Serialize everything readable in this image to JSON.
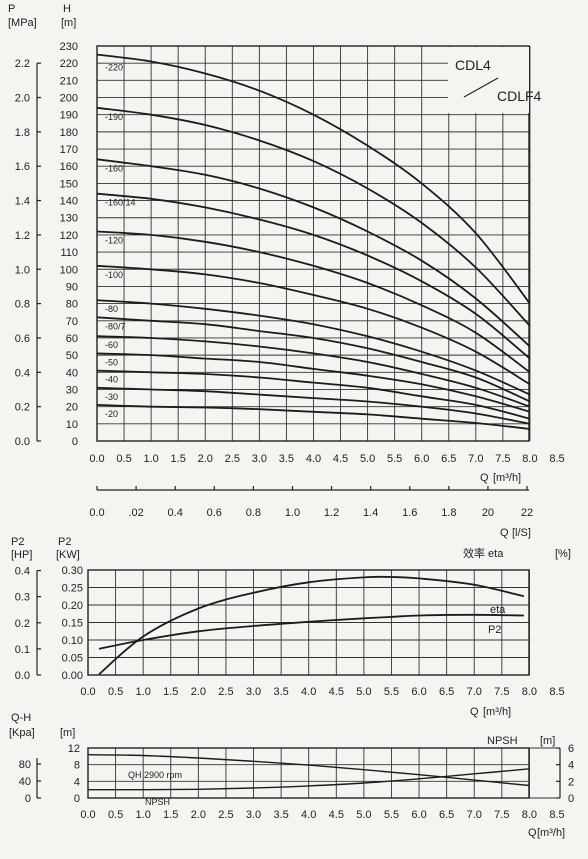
{
  "chart_data": [
    {
      "type": "line",
      "title": "",
      "model_labels": [
        "CDL4",
        "CDLF4"
      ],
      "left_axis": {
        "label": "P",
        "unit": "[MPa]",
        "ticks": [
          "0.0",
          "0.2",
          "0.4",
          "0.6",
          "0.8",
          "1.0",
          "1.2",
          "1.4",
          "1.6",
          "1.8",
          "2.0",
          "2.2"
        ],
        "ylim": [
          0,
          2.3
        ]
      },
      "y_axis": {
        "label": "H",
        "unit": "[m]",
        "ticks": [
          0,
          10,
          20,
          30,
          40,
          50,
          60,
          70,
          80,
          90,
          100,
          110,
          120,
          130,
          140,
          150,
          160,
          170,
          180,
          190,
          200,
          210,
          220,
          230
        ],
        "ylim": [
          0,
          230
        ]
      },
      "x_axis": {
        "label": "Q",
        "unit": "[m³/h]",
        "ticks": [
          "0.0",
          "0.5",
          "1.0",
          "1.5",
          "2.0",
          "2.5",
          "3.0",
          "3.5",
          "4.0",
          "4.5",
          "5.0",
          "5.5",
          "6.0",
          "6.5",
          "7.0",
          "7.5",
          "8.0",
          "8.5"
        ],
        "xlim": [
          0,
          8.5
        ]
      },
      "x2_axis": {
        "label": "Q",
        "unit": "[l/S]",
        "ticks": [
          "0.0",
          ".02",
          "0.4",
          "0.6",
          "0.8",
          "1.0",
          "1.2",
          "1.4",
          "1.6",
          "1.8",
          "20",
          "22"
        ],
        "xlim": [
          0,
          2.36
        ]
      },
      "grid": true,
      "x": [
        0,
        1,
        2,
        3,
        4,
        5,
        6,
        7,
        8
      ],
      "series": [
        {
          "name": "-220",
          "values": [
            225,
            221,
            214,
            204,
            190,
            172,
            150,
            121,
            80
          ]
        },
        {
          "name": "-190",
          "values": [
            194,
            190,
            184,
            175,
            163,
            147,
            127,
            101,
            67
          ]
        },
        {
          "name": "-160",
          "values": [
            164,
            160,
            155,
            147,
            136,
            122,
            105,
            83,
            55
          ]
        },
        {
          "name": "-160/14",
          "values": [
            144,
            141,
            136,
            129,
            120,
            108,
            93,
            74,
            48
          ]
        },
        {
          "name": "-120",
          "values": [
            122,
            120,
            116,
            110,
            102,
            92,
            79,
            63,
            40
          ]
        },
        {
          "name": "-100",
          "values": [
            102,
            100,
            97,
            92,
            85,
            77,
            66,
            52,
            33
          ]
        },
        {
          "name": "-80",
          "values": [
            82,
            80,
            77,
            73,
            68,
            61,
            52,
            41,
            27
          ]
        },
        {
          "name": "-80/7",
          "values": [
            72,
            70,
            68,
            64,
            60,
            54,
            46,
            37,
            23
          ]
        },
        {
          "name": "-60",
          "values": [
            61,
            60,
            58,
            55,
            51,
            46,
            39,
            31,
            20
          ]
        },
        {
          "name": "-50",
          "values": [
            51,
            50,
            48,
            46,
            42,
            38,
            33,
            26,
            17
          ]
        },
        {
          "name": "-40",
          "values": [
            41,
            40,
            39,
            37,
            34,
            31,
            26,
            21,
            13
          ]
        },
        {
          "name": "-30",
          "values": [
            31,
            30,
            29,
            27,
            25,
            23,
            20,
            16,
            10
          ]
        },
        {
          "name": "-20",
          "values": [
            21,
            20,
            19.5,
            18.5,
            17,
            15.5,
            13,
            10.5,
            7
          ]
        }
      ]
    },
    {
      "type": "line",
      "title": "",
      "y_axis": {
        "label": "P2",
        "unit": "[KW]",
        "ticks": [
          "0.00",
          "0.05",
          "0.10",
          "0.15",
          "0.20",
          "0.25",
          "0.30"
        ],
        "ylim": [
          0,
          0.3
        ]
      },
      "left_axis": {
        "label": "P2",
        "unit": "[HP]",
        "ticks": [
          "0.0",
          "0.1",
          "0.2",
          "0.3",
          "0.4"
        ]
      },
      "right_label": {
        "label": "效率 eta",
        "unit": "[%]"
      },
      "x_axis": {
        "label": "Q",
        "unit": "[m³/h]",
        "ticks": [
          "0.0",
          "0.5",
          "1.0",
          "1.5",
          "2.0",
          "2.5",
          "3.0",
          "3.5",
          "4.0",
          "4.5",
          "5.0",
          "5.5",
          "6.0",
          "6.5",
          "7.0",
          "7.5",
          "8.0",
          "8.5"
        ],
        "xlim": [
          0,
          8.5
        ]
      },
      "grid": true,
      "x": [
        0.2,
        1,
        2,
        3,
        4,
        5,
        5.5,
        6,
        7,
        7.9
      ],
      "series": [
        {
          "name": "eta",
          "values": [
            0.002,
            0.11,
            0.19,
            0.235,
            0.265,
            0.279,
            0.28,
            0.276,
            0.258,
            0.225
          ]
        },
        {
          "name": "P2",
          "values": [
            0.075,
            0.1,
            0.125,
            0.14,
            0.152,
            0.162,
            0.166,
            0.17,
            0.172,
            0.17
          ]
        }
      ]
    },
    {
      "type": "line",
      "title": "",
      "y_axis": {
        "label": "",
        "unit": "[m]",
        "ticks": [
          "0",
          "4",
          "8",
          "12"
        ],
        "ylim": [
          0,
          12
        ]
      },
      "left_axis": {
        "label": "Q-H",
        "unit": "[Kpa]",
        "ticks": [
          "0",
          "40",
          "80"
        ]
      },
      "right_axis": {
        "label": "NPSH",
        "unit": "[m]",
        "ticks": [
          "0",
          "2",
          "4",
          "6"
        ],
        "ylim": [
          0,
          6
        ]
      },
      "x_axis": {
        "label": "Q",
        "unit": "[m³/h]",
        "ticks": [
          "0.0",
          "0.5",
          "1.0",
          "1.5",
          "2.0",
          "2.5",
          "3.0",
          "3.5",
          "4.0",
          "4.5",
          "5.0",
          "5.5",
          "6.0",
          "6.5",
          "7.0",
          "7.5",
          "8.0",
          "8.5"
        ],
        "xlim": [
          0,
          8.5
        ]
      },
      "grid": true,
      "annotations": [
        "QH 2900 rpm",
        "NPSH"
      ],
      "x": [
        0,
        1,
        2,
        3,
        4,
        5,
        6,
        7,
        8
      ],
      "series": [
        {
          "name": "QH 2900 rpm",
          "values": [
            10.4,
            10.2,
            9.6,
            8.8,
            7.9,
            6.8,
            5.6,
            4.3,
            3.0
          ]
        },
        {
          "name": "NPSH",
          "values": [
            1.0,
            1.0,
            1.05,
            1.2,
            1.45,
            1.8,
            2.3,
            2.9,
            3.5
          ]
        }
      ]
    }
  ]
}
